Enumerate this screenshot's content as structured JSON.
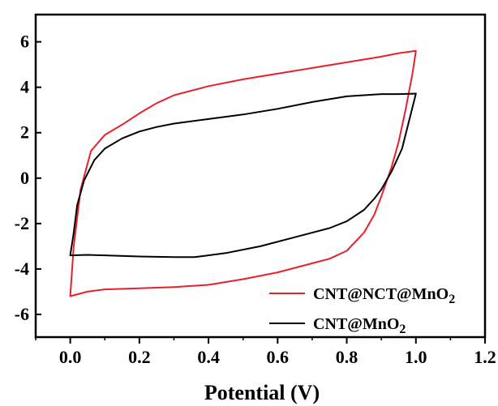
{
  "chart_data": {
    "type": "line",
    "title": "",
    "xlabel": "Potential (V)",
    "ylabel": "",
    "xlim": [
      -0.1,
      1.2
    ],
    "ylim": [
      -7,
      7.2
    ],
    "xticks": [
      "0.0",
      "0.2",
      "0.4",
      "0.6",
      "0.8",
      "1.0",
      "1.2"
    ],
    "yticks": [
      "-6",
      "-4",
      "-2",
      "0",
      "2",
      "4",
      "6"
    ],
    "xtick_values": [
      0.0,
      0.2,
      0.4,
      0.6,
      0.8,
      1.0,
      1.2
    ],
    "ytick_values": [
      -6,
      -4,
      -2,
      0,
      2,
      4,
      6
    ],
    "grid": false,
    "legend_position": "bottom-right",
    "series": [
      {
        "name": "CNT@NCT@MnO",
        "name_subscript": "2",
        "color": "#e8202a",
        "x": [
          0.0,
          0.02,
          0.05,
          0.1,
          0.15,
          0.2,
          0.25,
          0.3,
          0.4,
          0.5,
          0.6,
          0.7,
          0.8,
          0.9,
          0.95,
          1.0,
          1.0,
          0.99,
          0.97,
          0.94,
          0.9,
          0.86,
          0.82,
          0.78,
          0.7,
          0.6,
          0.5,
          0.4,
          0.3,
          0.2,
          0.1,
          0.05,
          0.02,
          0.0,
          0.0
        ],
        "y": [
          -5.2,
          -5.1,
          -5.0,
          -4.9,
          -4.85,
          -4.85,
          -4.8,
          -4.8,
          -4.7,
          -4.45,
          -4.15,
          -3.75,
          -3.2,
          -2.2,
          -1.0,
          0.5,
          5.6,
          4.0,
          2.5,
          0.8,
          -0.8,
          -2.0,
          -2.8,
          -3.2,
          -3.6,
          -3.9,
          -4.2,
          -4.4,
          -4.55,
          -4.65,
          -4.8,
          -4.9,
          -5.0,
          -5.2,
          -5.2
        ],
        "upper_x": [
          0.0,
          0.01,
          0.03,
          0.06,
          0.1,
          0.15,
          0.2,
          0.25,
          0.3,
          0.4,
          0.5,
          0.6,
          0.7,
          0.8,
          0.9,
          0.95,
          1.0
        ],
        "upper_y": [
          -5.2,
          -3.0,
          -0.5,
          1.2,
          1.9,
          2.35,
          2.85,
          3.3,
          3.65,
          4.05,
          4.35,
          4.6,
          4.85,
          5.1,
          5.35,
          5.5,
          5.6
        ],
        "lower_x": [
          0.0,
          0.05,
          0.1,
          0.2,
          0.3,
          0.4,
          0.5,
          0.6,
          0.7,
          0.75,
          0.8,
          0.85,
          0.88,
          0.9,
          0.93,
          0.95,
          0.97,
          0.99,
          1.0
        ],
        "lower_y": [
          -5.2,
          -5.0,
          -4.9,
          -4.85,
          -4.8,
          -4.7,
          -4.45,
          -4.15,
          -3.75,
          -3.55,
          -3.2,
          -2.4,
          -1.6,
          -0.8,
          0.5,
          1.6,
          3.0,
          4.6,
          5.6
        ]
      },
      {
        "name": "CNT@MnO",
        "name_subscript": "2",
        "color": "#000000",
        "upper_x": [
          0.0,
          0.01,
          0.02,
          0.04,
          0.07,
          0.1,
          0.15,
          0.2,
          0.25,
          0.3,
          0.4,
          0.5,
          0.6,
          0.7,
          0.8,
          0.9,
          0.95,
          1.0
        ],
        "upper_y": [
          -3.4,
          -2.4,
          -1.2,
          -0.1,
          0.8,
          1.3,
          1.75,
          2.05,
          2.25,
          2.4,
          2.6,
          2.8,
          3.05,
          3.35,
          3.6,
          3.7,
          3.7,
          3.72
        ],
        "lower_x": [
          0.0,
          0.05,
          0.1,
          0.2,
          0.3,
          0.36,
          0.45,
          0.55,
          0.65,
          0.75,
          0.8,
          0.85,
          0.88,
          0.9,
          0.93,
          0.96,
          0.98,
          1.0
        ],
        "lower_y": [
          -3.4,
          -3.38,
          -3.4,
          -3.45,
          -3.48,
          -3.48,
          -3.3,
          -3.0,
          -2.6,
          -2.2,
          -1.9,
          -1.4,
          -0.9,
          -0.5,
          0.3,
          1.3,
          2.5,
          3.72
        ]
      }
    ]
  }
}
